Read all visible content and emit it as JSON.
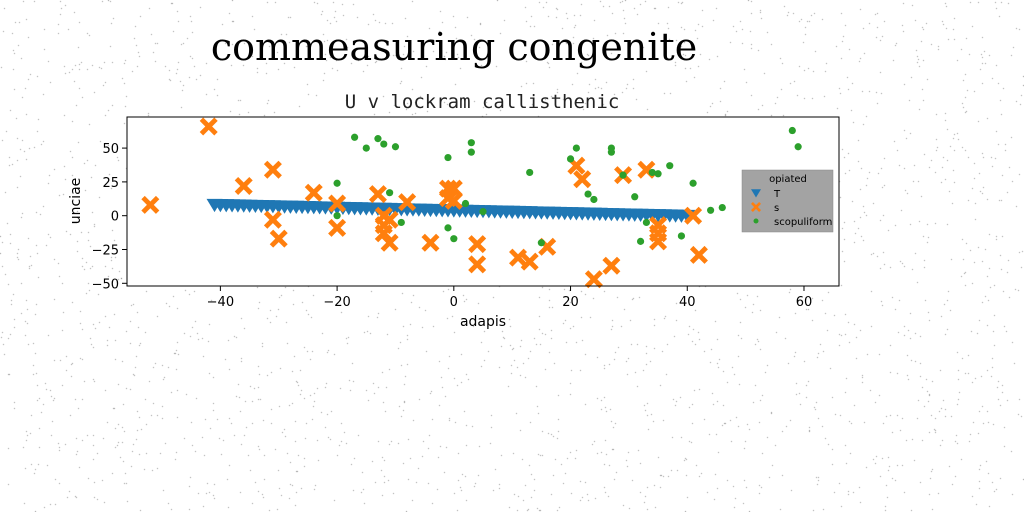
{
  "figure_title": "commeasuring congenite",
  "colors": {
    "T": "#1f77b4",
    "s": "#ff7f0e",
    "scopuliform": "#2ca02c",
    "legend_bg": "#999999",
    "background": "#ffffff"
  },
  "chart_data": {
    "type": "scatter",
    "title": "U v lockram callisthenic",
    "xlabel": "adapis",
    "ylabel": "unciae",
    "xlim": [
      -56,
      66
    ],
    "ylim": [
      -52,
      73
    ],
    "xticks": [
      -40,
      -20,
      0,
      20,
      40,
      60
    ],
    "yticks": [
      -50,
      -25,
      0,
      25,
      50
    ],
    "xtick_labels": [
      "−40",
      "−20",
      "0",
      "20",
      "40",
      "60"
    ],
    "ytick_labels": [
      "−50",
      "−25",
      "0",
      "25",
      "50"
    ],
    "grid": false,
    "legend": {
      "title": "opiated",
      "placement": "center-right",
      "entries": [
        "T",
        "s",
        "scopuliform"
      ]
    },
    "series": [
      {
        "name": "T",
        "marker": "triangle-down",
        "x": [
          -41,
          -40,
          -39,
          -38,
          -37,
          -36,
          -35,
          -34,
          -33,
          -32,
          -31,
          -30,
          -29,
          -28,
          -27,
          -26,
          -25,
          -24,
          -23,
          -22,
          -21,
          -20,
          -19,
          -18,
          -17,
          -16,
          -15,
          -14,
          -13,
          -12,
          -11,
          -10,
          -9,
          -8,
          -7,
          -6,
          -5,
          -4,
          -3,
          -2,
          -1,
          0,
          1,
          2,
          3,
          4,
          5,
          6,
          7,
          8,
          9,
          10,
          11,
          12,
          13,
          14,
          15,
          16,
          17,
          18,
          19,
          20,
          21,
          22,
          23,
          24,
          25,
          26,
          27,
          28,
          29,
          30,
          31,
          32,
          33,
          34,
          35,
          36,
          37,
          38,
          39,
          40
        ],
        "y": [
          8.0,
          7.9,
          7.8,
          7.7,
          7.6,
          7.5,
          7.4,
          7.3,
          7.2,
          7.1,
          7.0,
          6.9,
          6.8,
          6.7,
          6.6,
          6.5,
          6.4,
          6.3,
          6.2,
          6.1,
          6.0,
          5.9,
          5.8,
          5.7,
          5.6,
          5.5,
          5.4,
          5.3,
          5.2,
          5.1,
          5.0,
          4.9,
          4.8,
          4.7,
          4.6,
          4.5,
          4.4,
          4.3,
          4.2,
          4.1,
          4.0,
          3.9,
          3.8,
          3.7,
          3.6,
          3.5,
          3.4,
          3.3,
          3.2,
          3.1,
          3.0,
          2.9,
          2.8,
          2.7,
          2.6,
          2.5,
          2.4,
          2.3,
          2.2,
          2.1,
          2.0,
          1.9,
          1.8,
          1.7,
          1.6,
          1.5,
          1.4,
          1.3,
          1.2,
          1.1,
          1.0,
          0.9,
          0.8,
          0.7,
          0.6,
          0.5,
          0.4,
          0.3,
          0.2,
          0.1,
          0.0,
          -0.1
        ]
      },
      {
        "name": "s",
        "marker": "x-filled",
        "x": [
          -52,
          -42,
          -36,
          -31,
          -31,
          -30,
          -24,
          -20,
          -20,
          -13,
          -12,
          -12,
          -12,
          -11,
          -11,
          -8,
          -4,
          -1,
          -1,
          0,
          0,
          4,
          4,
          11,
          13,
          16,
          24,
          27,
          21,
          22,
          29,
          33,
          35,
          35,
          35,
          41,
          42
        ],
        "y": [
          8,
          66,
          22,
          34,
          -3,
          -17,
          17,
          9,
          -9,
          16,
          0,
          -7,
          -13,
          -20,
          -3,
          10,
          -20,
          20,
          13,
          20,
          11,
          -36,
          -21,
          -31,
          -34,
          -23,
          -47,
          -37,
          37,
          27,
          30,
          34,
          -7,
          -19,
          -13,
          0,
          -29
        ]
      },
      {
        "name": "scopuliform",
        "marker": "circle",
        "x": [
          -17,
          -15,
          -13,
          -12,
          -10,
          -20,
          -11,
          -20,
          -9,
          -1,
          3,
          3,
          2,
          -1,
          0,
          13,
          20,
          21,
          23,
          24,
          27,
          27,
          29,
          31,
          34,
          35,
          37,
          41,
          44,
          46,
          58,
          59,
          32,
          33,
          39,
          15,
          5
        ],
        "y": [
          58,
          50,
          57,
          53,
          51,
          24,
          17,
          0,
          -5,
          43,
          54,
          47,
          9,
          -9,
          -17,
          32,
          42,
          50,
          16,
          12,
          50,
          47,
          30,
          14,
          32,
          31,
          37,
          24,
          4,
          6,
          63,
          51,
          -19,
          -5,
          -15,
          -20,
          3
        ]
      }
    ]
  }
}
